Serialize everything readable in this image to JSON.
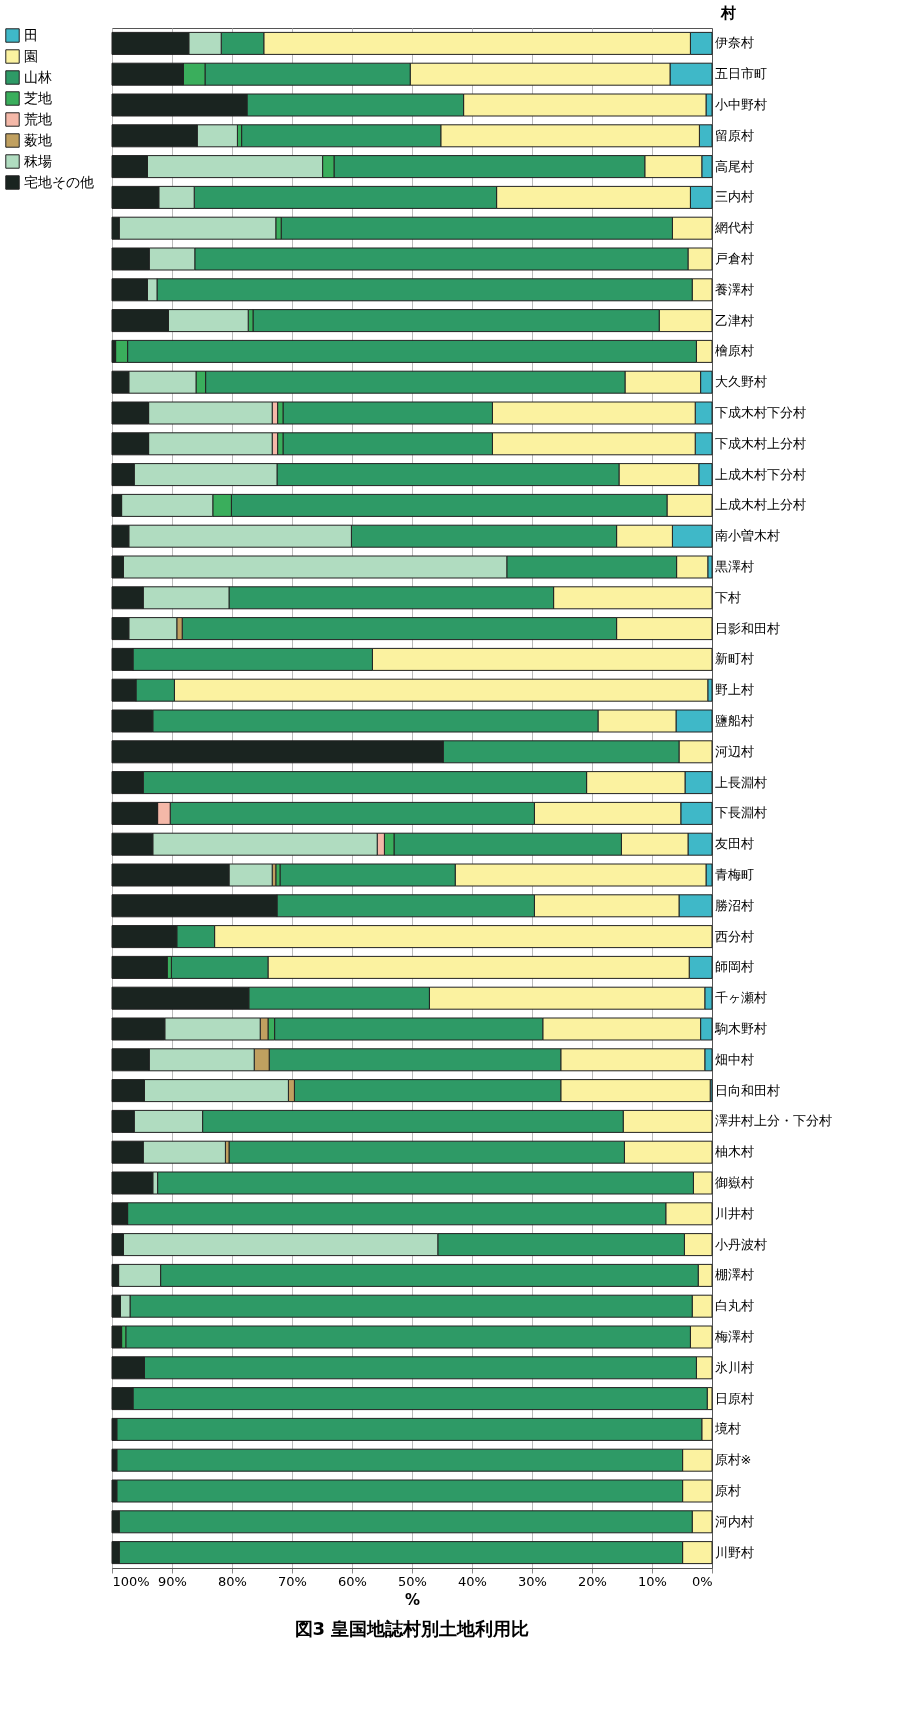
{
  "chart_data": {
    "type": "bar",
    "orientation": "horizontal",
    "stacked": true,
    "title": "図3 皇国地誌村別土地利用比",
    "xlabel": "%",
    "ylabel": "村",
    "categories": [
      "伊奈村",
      "五日市町",
      "小中野村",
      "留原村",
      "高尾村",
      "三内村",
      "網代村",
      "戸倉村",
      "養澤村",
      "乙津村",
      "檜原村",
      "大久野村",
      "下成木村下分村",
      "下成木村上分村",
      "上成木村下分村",
      "上成木村上分村",
      "南小曽木村",
      "黒澤村",
      "下村",
      "日影和田村",
      "新町村",
      "野上村",
      "鹽船村",
      "河辺村",
      "上長淵村",
      "下長淵村",
      "友田村",
      "青梅町",
      "勝沼村",
      "西分村",
      "師岡村",
      "千ヶ瀬村",
      "駒木野村",
      "畑中村",
      "日向和田村",
      "澤井村上分・下分村",
      "柚木村",
      "御嶽村",
      "川井村",
      "小丹波村",
      "棚澤村",
      "白丸村",
      "梅澤村",
      "氷川村",
      "日原村",
      "境村",
      "原村※",
      "原村",
      "河内村",
      "川野村"
    ],
    "series": [
      {
        "name": "田",
        "color": "#3fb8c8",
        "values": [
          3.6,
          7.0,
          1.0,
          2.1,
          1.7,
          3.6,
          0,
          0,
          0,
          0,
          0,
          1.9,
          2.8,
          2.8,
          2.2,
          0,
          6.6,
          0.7,
          0,
          0,
          0,
          0.7,
          6.0,
          0,
          4.5,
          5.2,
          4.0,
          1.0,
          5.5,
          0,
          3.8,
          1.2,
          1.9,
          1.2,
          0.3,
          0,
          0,
          0,
          0,
          0,
          0,
          0,
          0,
          0,
          0,
          0,
          0,
          0,
          0,
          0
        ]
      },
      {
        "name": "園",
        "color": "#fbf2a0",
        "values": [
          71.1,
          43.3,
          40.4,
          43.1,
          9.5,
          32.3,
          6.6,
          4.0,
          3.3,
          8.8,
          2.6,
          12.6,
          33.8,
          33.8,
          13.3,
          7.5,
          9.3,
          5.2,
          26.4,
          15.9,
          56.6,
          88.9,
          13.0,
          5.5,
          16.4,
          24.4,
          11.1,
          41.8,
          24.1,
          82.9,
          70.2,
          45.9,
          26.3,
          24.0,
          24.9,
          14.8,
          14.6,
          3.1,
          7.7,
          4.6,
          2.3,
          3.3,
          3.6,
          2.6,
          0.8,
          1.7,
          4.9,
          4.9,
          3.3,
          4.9
        ]
      },
      {
        "name": "山林",
        "color": "#2e9a66",
        "values": [
          7.1,
          34.2,
          36.1,
          33.2,
          51.8,
          50.4,
          65.2,
          82.2,
          89.2,
          67.7,
          94.8,
          69.9,
          34.9,
          34.9,
          57.0,
          72.6,
          44.2,
          28.3,
          54.1,
          72.4,
          39.9,
          6.4,
          74.2,
          39.3,
          73.9,
          60.7,
          37.9,
          29.2,
          42.9,
          6.3,
          16.1,
          30.1,
          44.7,
          48.6,
          44.4,
          70.1,
          65.9,
          89.3,
          89.7,
          41.1,
          89.6,
          93.7,
          94.1,
          92.0,
          95.7,
          97.5,
          94.3,
          94.3,
          95.5,
          93.9
        ]
      },
      {
        "name": "芝地",
        "color": "#3aae5c",
        "values": [
          0,
          3.6,
          0,
          0.7,
          1.9,
          0,
          0.9,
          0,
          0,
          0.8,
          2.0,
          1.6,
          0.9,
          0.9,
          0,
          3.1,
          0,
          0,
          0,
          0,
          0,
          0,
          0,
          0,
          0,
          0,
          1.6,
          0.7,
          0,
          0,
          0.7,
          0,
          1.1,
          0,
          0,
          0,
          0,
          0,
          0,
          0,
          0,
          0,
          0.7,
          0,
          0,
          0,
          0,
          0,
          0,
          0
        ]
      },
      {
        "name": "荒地",
        "color": "#f4b8a8",
        "values": [
          0,
          0,
          0,
          0,
          0,
          0,
          0,
          0,
          0,
          0,
          0,
          0,
          0.9,
          0.9,
          0,
          0,
          0,
          0,
          0,
          0,
          0,
          0,
          0,
          0,
          0,
          2.1,
          1.2,
          0,
          0,
          0,
          0,
          0,
          0,
          0,
          0,
          0,
          0,
          0,
          0,
          0,
          0,
          0,
          0,
          0,
          0,
          0,
          0,
          0,
          0,
          0
        ]
      },
      {
        "name": "薮地",
        "color": "#c0a060",
        "values": [
          0,
          0,
          0,
          0,
          0,
          0,
          0,
          0,
          0,
          0,
          0,
          0,
          0,
          0,
          0,
          0,
          0,
          0,
          0,
          0.9,
          0,
          0,
          0,
          0,
          0,
          0,
          0,
          0.6,
          0,
          0,
          0,
          0,
          1.3,
          2.5,
          1.0,
          0,
          0.6,
          0,
          0,
          0,
          0,
          0,
          0,
          0,
          0,
          0,
          0,
          0,
          0,
          0
        ]
      },
      {
        "name": "秣場",
        "color": "#b0dcc0",
        "values": [
          5.4,
          0,
          0,
          6.7,
          29.2,
          5.9,
          26.1,
          7.6,
          1.6,
          13.3,
          0,
          11.2,
          20.6,
          20.6,
          23.8,
          15.2,
          37.1,
          63.9,
          14.3,
          8.0,
          0,
          0,
          0,
          0,
          0,
          0,
          37.4,
          7.2,
          0,
          0,
          0,
          0,
          15.9,
          17.5,
          24.0,
          11.4,
          13.7,
          0.8,
          0,
          52.4,
          7.0,
          1.6,
          0,
          0,
          0,
          0,
          0,
          0,
          0,
          0
        ]
      },
      {
        "name": "宅地その他",
        "color": "#1a2420",
        "values": [
          12.8,
          11.9,
          22.5,
          14.2,
          5.9,
          7.8,
          1.2,
          6.2,
          5.9,
          9.4,
          0.6,
          2.8,
          6.1,
          6.1,
          3.7,
          1.6,
          2.8,
          1.9,
          5.2,
          2.8,
          3.5,
          4.0,
          6.8,
          55.2,
          5.2,
          7.6,
          6.8,
          19.5,
          27.5,
          10.8,
          9.2,
          22.8,
          8.8,
          6.2,
          5.4,
          3.7,
          5.2,
          6.8,
          2.6,
          1.9,
          1.1,
          1.4,
          1.6,
          5.4,
          3.5,
          0.8,
          0.8,
          0.8,
          1.2,
          1.2
        ]
      }
    ],
    "xlim": [
      100,
      0
    ],
    "xticks": [
      {
        "value": 100,
        "label": "100%"
      },
      {
        "value": 90,
        "label": "90%"
      },
      {
        "value": 80,
        "label": "80%"
      },
      {
        "value": 70,
        "label": "70%"
      },
      {
        "value": 60,
        "label": "60%"
      },
      {
        "value": 50,
        "label": "50%"
      },
      {
        "value": 40,
        "label": "40%"
      },
      {
        "value": 30,
        "label": "30%"
      },
      {
        "value": 20,
        "label": "20%"
      },
      {
        "value": 10,
        "label": "10%"
      },
      {
        "value": 0,
        "label": "0%"
      }
    ],
    "grid": "x",
    "legend": "left"
  }
}
